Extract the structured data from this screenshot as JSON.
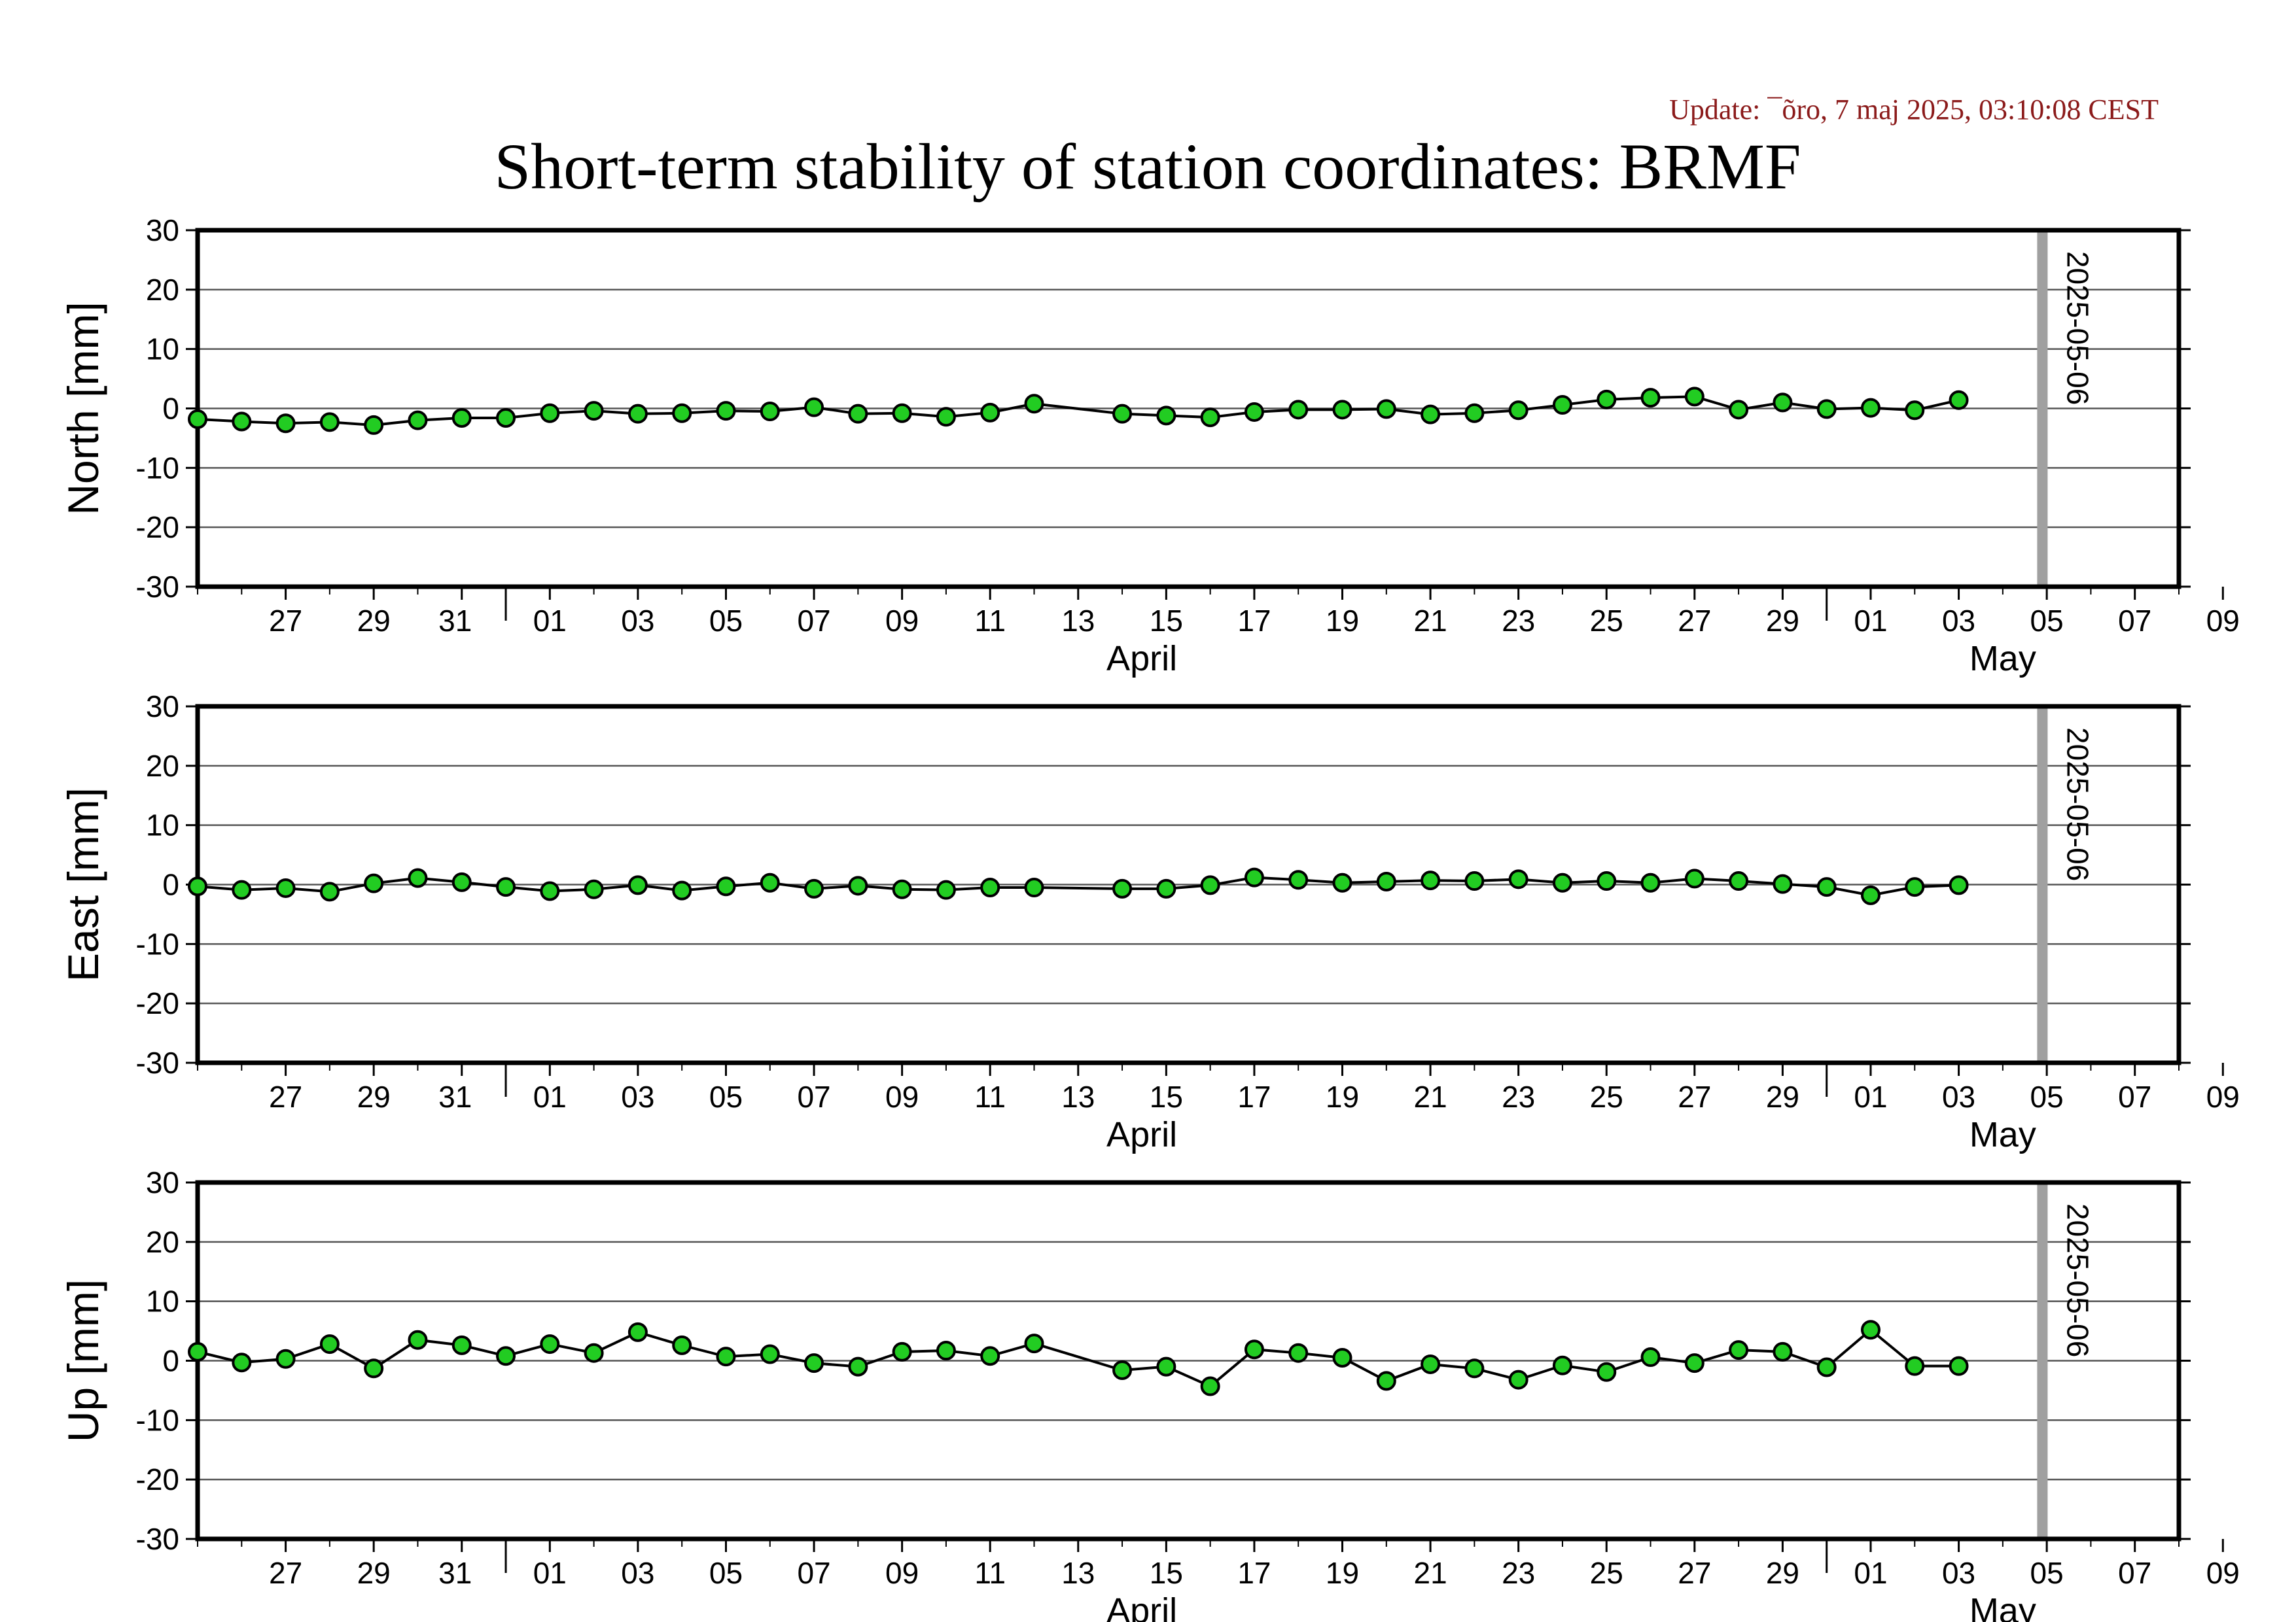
{
  "header": {
    "update_text": "Update: ¯õro, 7 maj 2025, 03:10:08 CEST",
    "title": "Short-term stability of station coordinates: BRMF"
  },
  "colors": {
    "update_text": "#8b1a1a",
    "marker_fill": "#22cc22",
    "marker_stroke": "#000000",
    "line": "#000000",
    "grid": "#555555",
    "date_marker": "#a0a0a0"
  },
  "chart_data": [
    {
      "type": "line",
      "ylabel": "North [mm]",
      "ylim": [
        -30,
        30
      ],
      "yticks": [
        30,
        20,
        10,
        0,
        -10,
        -20,
        -30
      ],
      "xlim": [
        "2025-03-25",
        "2025-05-09"
      ],
      "x_tick_labels": [
        "27",
        "29",
        "31",
        "01",
        "03",
        "05",
        "07",
        "09",
        "11",
        "13",
        "15",
        "17",
        "19",
        "21",
        "23",
        "25",
        "27",
        "29",
        "01",
        "03",
        "05",
        "07",
        "09"
      ],
      "month_labels": [
        "April",
        "May"
      ],
      "grid": "horizontal",
      "date_marker": {
        "date": "2025-05-06",
        "label": "2025-05-06"
      },
      "series": [
        {
          "x": [
            "2025-03-25",
            "2025-03-26",
            "2025-03-27",
            "2025-03-28",
            "2025-03-29",
            "2025-03-30",
            "2025-03-31",
            "2025-04-01",
            "2025-04-02",
            "2025-04-03",
            "2025-04-04",
            "2025-04-05",
            "2025-04-06",
            "2025-04-07",
            "2025-04-08",
            "2025-04-09",
            "2025-04-10",
            "2025-04-11",
            "2025-04-12",
            "2025-04-13",
            "2025-04-15",
            "2025-04-16",
            "2025-04-17",
            "2025-04-18",
            "2025-04-19",
            "2025-04-20",
            "2025-04-21",
            "2025-04-22",
            "2025-04-23",
            "2025-04-24",
            "2025-04-25",
            "2025-04-26",
            "2025-04-27",
            "2025-04-28",
            "2025-04-29",
            "2025-04-30",
            "2025-05-01",
            "2025-05-02",
            "2025-05-03",
            "2025-05-04"
          ],
          "values": [
            -1.8,
            -2.2,
            -2.5,
            -2.3,
            -2.8,
            -2.0,
            -1.6,
            -1.6,
            -0.8,
            -0.4,
            -0.9,
            -0.8,
            -0.4,
            -0.5,
            0.2,
            -0.9,
            -0.8,
            -1.4,
            -0.7,
            0.8,
            -0.9,
            -1.2,
            -1.5,
            -0.6,
            -0.2,
            -0.2,
            -0.1,
            -1.0,
            -0.8,
            -0.3,
            0.6,
            1.5,
            1.8,
            2.0,
            -0.2,
            1.0,
            -0.1,
            0.1,
            -0.3,
            1.4
          ]
        }
      ]
    },
    {
      "type": "line",
      "ylabel": "East [mm]",
      "ylim": [
        -30,
        30
      ],
      "yticks": [
        30,
        20,
        10,
        0,
        -10,
        -20,
        -30
      ],
      "xlim": [
        "2025-03-25",
        "2025-05-09"
      ],
      "x_tick_labels": [
        "27",
        "29",
        "31",
        "01",
        "03",
        "05",
        "07",
        "09",
        "11",
        "13",
        "15",
        "17",
        "19",
        "21",
        "23",
        "25",
        "27",
        "29",
        "01",
        "03",
        "05",
        "07",
        "09"
      ],
      "month_labels": [
        "April",
        "May"
      ],
      "grid": "horizontal",
      "date_marker": {
        "date": "2025-05-06",
        "label": "2025-05-06"
      },
      "series": [
        {
          "x": [
            "2025-03-25",
            "2025-03-26",
            "2025-03-27",
            "2025-03-28",
            "2025-03-29",
            "2025-03-30",
            "2025-03-31",
            "2025-04-01",
            "2025-04-02",
            "2025-04-03",
            "2025-04-04",
            "2025-04-05",
            "2025-04-06",
            "2025-04-07",
            "2025-04-08",
            "2025-04-09",
            "2025-04-10",
            "2025-04-11",
            "2025-04-12",
            "2025-04-13",
            "2025-04-15",
            "2025-04-16",
            "2025-04-17",
            "2025-04-18",
            "2025-04-19",
            "2025-04-20",
            "2025-04-21",
            "2025-04-22",
            "2025-04-23",
            "2025-04-24",
            "2025-04-25",
            "2025-04-26",
            "2025-04-27",
            "2025-04-28",
            "2025-04-29",
            "2025-04-30",
            "2025-05-01",
            "2025-05-02",
            "2025-05-03",
            "2025-05-04"
          ],
          "values": [
            -0.3,
            -0.9,
            -0.6,
            -1.2,
            0.2,
            1.1,
            0.4,
            -0.4,
            -1.1,
            -0.8,
            -0.1,
            -1.0,
            -0.3,
            0.3,
            -0.7,
            -0.2,
            -0.8,
            -0.9,
            -0.5,
            -0.5,
            -0.7,
            -0.7,
            -0.1,
            1.2,
            0.8,
            0.3,
            0.5,
            0.7,
            0.6,
            0.9,
            0.3,
            0.6,
            0.3,
            1.0,
            0.6,
            0.1,
            -0.4,
            -1.8,
            -0.4,
            -0.1
          ]
        }
      ]
    },
    {
      "type": "line",
      "ylabel": "Up [mm]",
      "ylim": [
        -30,
        30
      ],
      "yticks": [
        30,
        20,
        10,
        0,
        -10,
        -20,
        -30
      ],
      "xlim": [
        "2025-03-25",
        "2025-05-09"
      ],
      "x_tick_labels": [
        "27",
        "29",
        "31",
        "01",
        "03",
        "05",
        "07",
        "09",
        "11",
        "13",
        "15",
        "17",
        "19",
        "21",
        "23",
        "25",
        "27",
        "29",
        "01",
        "03",
        "05",
        "07",
        "09"
      ],
      "month_labels": [
        "April",
        "May"
      ],
      "grid": "horizontal",
      "date_marker": {
        "date": "2025-05-06",
        "label": "2025-05-06"
      },
      "series": [
        {
          "x": [
            "2025-03-25",
            "2025-03-26",
            "2025-03-27",
            "2025-03-28",
            "2025-03-29",
            "2025-03-30",
            "2025-03-31",
            "2025-04-01",
            "2025-04-02",
            "2025-04-03",
            "2025-04-04",
            "2025-04-05",
            "2025-04-06",
            "2025-04-07",
            "2025-04-08",
            "2025-04-09",
            "2025-04-10",
            "2025-04-11",
            "2025-04-12",
            "2025-04-13",
            "2025-04-15",
            "2025-04-16",
            "2025-04-17",
            "2025-04-18",
            "2025-04-19",
            "2025-04-20",
            "2025-04-21",
            "2025-04-22",
            "2025-04-23",
            "2025-04-24",
            "2025-04-25",
            "2025-04-26",
            "2025-04-27",
            "2025-04-28",
            "2025-04-29",
            "2025-04-30",
            "2025-05-01",
            "2025-05-02",
            "2025-05-03",
            "2025-05-04"
          ],
          "values": [
            1.5,
            -0.3,
            0.3,
            2.8,
            -1.3,
            3.5,
            2.6,
            0.8,
            2.8,
            1.3,
            4.8,
            2.6,
            0.7,
            1.1,
            -0.4,
            -1.0,
            1.5,
            1.7,
            0.8,
            2.9,
            -1.6,
            -1.0,
            -4.3,
            1.9,
            1.3,
            0.5,
            -3.4,
            -0.6,
            -1.3,
            -3.2,
            -0.8,
            -1.9,
            0.6,
            -0.4,
            1.8,
            1.5,
            -1.1,
            5.2,
            -0.9,
            -0.9
          ]
        }
      ]
    }
  ]
}
